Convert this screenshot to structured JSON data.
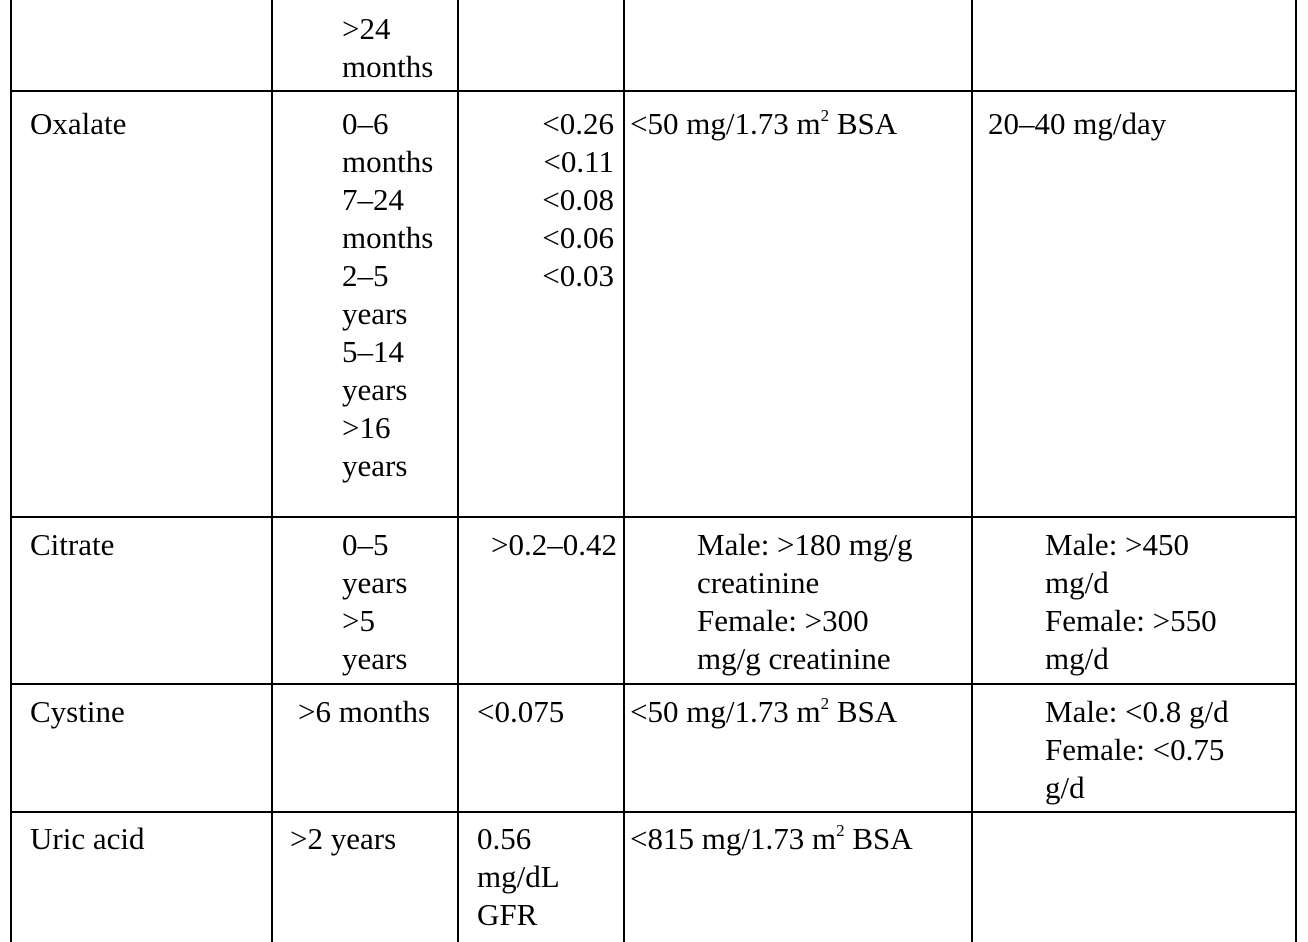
{
  "table": {
    "rows": [
      {
        "name": "row-age-continuation",
        "analyte": "",
        "age": [
          ">24",
          "months"
        ],
        "mmol_ratio": [],
        "per_bsa": [],
        "per_day": []
      },
      {
        "name": "row-oxalate",
        "analyte": "Oxalate",
        "age": [
          "0–6",
          "months",
          "7–24",
          "months",
          "2–5",
          "years",
          "5–14",
          "years",
          ">16",
          "years"
        ],
        "mmol_ratio": [
          "<0.26",
          "<0.11",
          "<0.08",
          "<0.06",
          "<0.03"
        ],
        "per_bsa": {
          "prefix": "<50 mg/1.73 m",
          "sup": "2",
          "suffix": " BSA"
        },
        "per_day": [
          "20–40 mg/day"
        ]
      },
      {
        "name": "row-citrate",
        "analyte": "Citrate",
        "age": [
          "0–5",
          "years",
          ">5",
          "years"
        ],
        "mmol_ratio": [
          ">0.2–0.42"
        ],
        "per_bsa": [
          "Male: >180 mg/g",
          "creatinine",
          "Female: >300",
          "mg/g creatinine"
        ],
        "per_day": [
          "Male: >450",
          "mg/d",
          "Female: >550",
          "mg/d"
        ]
      },
      {
        "name": "row-cystine",
        "analyte": "Cystine",
        "age": [
          ">6 months"
        ],
        "mmol_ratio": [
          "<0.075"
        ],
        "per_bsa": {
          "prefix": "<50 mg/1.73 m",
          "sup": "2",
          "suffix": " BSA"
        },
        "per_day": [
          "Male: <0.8 g/d",
          "Female: <0.75",
          "g/d"
        ]
      },
      {
        "name": "row-uric-acid",
        "analyte": "Uric acid",
        "age": [
          ">2 years"
        ],
        "mmol_ratio": [
          "0.56",
          "mg/dL",
          "GFR"
        ],
        "per_bsa": {
          "prefix": "<815 mg/1.73 m",
          "sup": "2",
          "suffix": " BSA"
        },
        "per_day": []
      }
    ]
  }
}
